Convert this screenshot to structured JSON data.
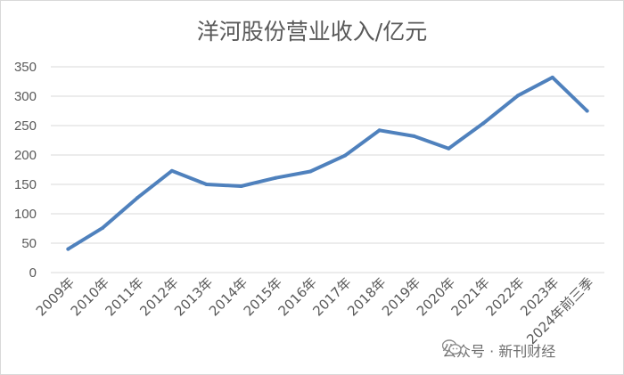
{
  "chart_data": {
    "type": "line",
    "title": "洋河股份营业收入/亿元",
    "categories": [
      "2009年",
      "2010年",
      "2011年",
      "2012年",
      "2013年",
      "2014年",
      "2015年",
      "2016年",
      "2017年",
      "2018年",
      "2019年",
      "2020年",
      "2021年",
      "2022年",
      "2023年",
      "2024年前三季"
    ],
    "series": [
      {
        "values": [
          40,
          76,
          127,
          173,
          150,
          147,
          161,
          172,
          199,
          242,
          232,
          211,
          254,
          301,
          332,
          275
        ]
      }
    ],
    "yticks": [
      "0",
      "50",
      "100",
      "150",
      "200",
      "250",
      "300",
      "350"
    ],
    "ylim": [
      0,
      350
    ],
    "grid": true,
    "line_color": "#4f81bd"
  },
  "watermark": {
    "text": "公众号 · 新刊财经",
    "icon": "wechat-icon"
  }
}
